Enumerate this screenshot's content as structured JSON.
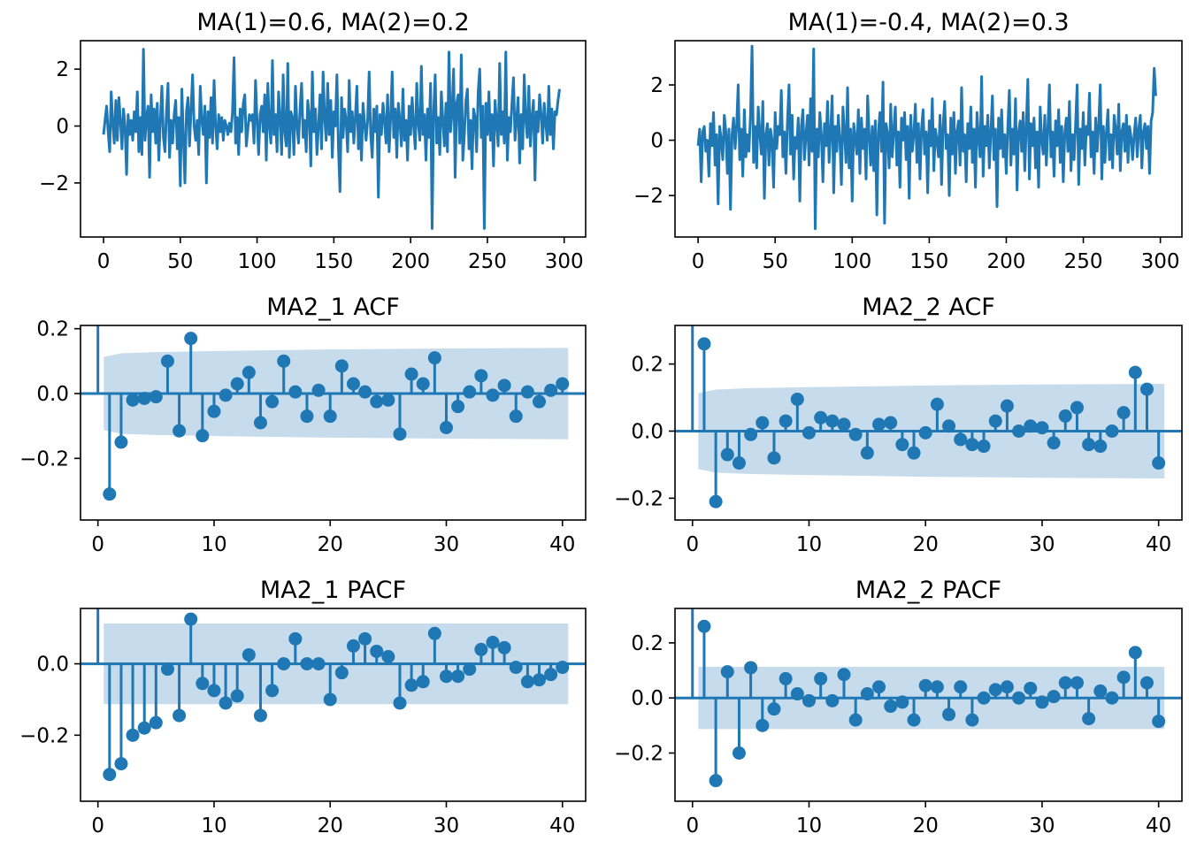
{
  "colors": {
    "line": "#1f77b4",
    "band": "#c6dbec",
    "axis": "#000000"
  },
  "chart_data": [
    {
      "type": "line",
      "title": "MA(1)=0.6, MA(2)=0.2",
      "xlim": [
        -15,
        314
      ],
      "ylim": [
        -3.9,
        3.0
      ],
      "xticks": [
        0,
        50,
        100,
        150,
        200,
        250,
        300
      ],
      "xtick_labels": [
        "0",
        "50",
        "100",
        "150",
        "200",
        "250",
        "300"
      ],
      "yticks": [
        -2,
        0,
        2
      ],
      "ytick_labels": [
        "−2",
        "0",
        "2"
      ],
      "series": [
        {
          "values": [
            -0.3,
            0.2,
            0.7,
            -0.2,
            -0.9,
            1.2,
            0.1,
            -0.6,
            0.9,
            -0.5,
            1.0,
            0.2,
            -0.8,
            0.6,
            0.0,
            -1.7,
            0.4,
            -0.3,
            0.2,
            -0.5,
            0.5,
            -0.2,
            1.2,
            -0.9,
            0.3,
            -1.0,
            2.7,
            -0.5,
            0.3,
            0.7,
            -1.8,
            1.1,
            -0.2,
            0.6,
            -0.6,
            0.8,
            -1.2,
            0.2,
            1.4,
            -0.4,
            -0.9,
            0.5,
            1.5,
            -1.1,
            0.2,
            -0.6,
            0.4,
            0.9,
            -0.8,
            0.3,
            -2.1,
            1.3,
            -0.4,
            -2.0,
            0.5,
            1.0,
            -0.7,
            0.6,
            1.8,
            0.0,
            -0.5,
            0.2,
            -1.0,
            1.4,
            0.2,
            -0.3,
            0.7,
            -2.0,
            0.5,
            -0.4,
            1.0,
            -0.6,
            1.6,
            0.0,
            -0.8,
            0.4,
            -0.2,
            0.3,
            -0.5,
            0.2,
            0.0,
            -0.3,
            0.1,
            -0.2,
            0.5,
            2.4,
            -0.6,
            0.3,
            -1.0,
            0.6,
            -0.2,
            0.8,
            1.1,
            -0.7,
            -0.1,
            0.4,
            0.2,
            0.4,
            -0.6,
            1.6,
            0.2,
            -1.0,
            0.4,
            0.7,
            -0.2,
            1.1,
            -1.2,
            1.5,
            0.0,
            -0.6,
            2.3,
            -0.3,
            0.4,
            -0.9,
            1.2,
            0.3,
            -1.0,
            1.8,
            -0.2,
            -0.7,
            2.2,
            -1.1,
            0.5,
            0.3,
            -1.0,
            1.4,
            0.0,
            -0.6,
            0.6,
            1.5,
            -0.4,
            0.2,
            -0.9,
            0.9,
            0.4,
            -1.4,
            1.9,
            -0.2,
            0.6,
            -1.0,
            0.0,
            1.1,
            -0.8,
            1.9,
            0.3,
            -0.5,
            1.5,
            -0.3,
            0.9,
            -1.1,
            0.5,
            0.0,
            1.8,
            -0.8,
            -2.3,
            1.0,
            -0.4,
            0.6,
            0.2,
            -0.9,
            1.6,
            -0.2,
            0.5,
            -0.6,
            0.3,
            1.4,
            -0.8,
            0.4,
            -1.2,
            0.8,
            0.1,
            -0.5,
            0.2,
            1.9,
            -0.3,
            -1.1,
            0.6,
            -0.2,
            0.7,
            -2.5,
            0.4,
            -0.3,
            0.8,
            0.2,
            -0.6,
            1.1,
            -0.9,
            0.3,
            1.9,
            -0.4,
            0.6,
            -1.1,
            0.8,
            0.2,
            -0.7,
            1.3,
            -0.5,
            0.2,
            -1.2,
            0.7,
            -0.3,
            1.0,
            0.0,
            -0.8,
            1.5,
            0.1,
            -0.5,
            2.1,
            -0.3,
            0.4,
            -1.2,
            0.6,
            -0.4,
            1.5,
            -3.6,
            0.5,
            1.8,
            -0.6,
            0.3,
            -1.0,
            1.2,
            0.2,
            -0.7,
            0.8,
            -0.9,
            2.6,
            -0.2,
            0.5,
            2.0,
            -1.8,
            0.8,
            1.1,
            -0.6,
            2.5,
            -1.2,
            -0.3,
            0.9,
            1.3,
            -0.8,
            0.2,
            -1.5,
            0.6,
            0.3,
            -0.9,
            1.2,
            2.0,
            -0.4,
            0.7,
            -3.6,
            0.8,
            -0.3,
            1.2,
            -0.5,
            0.4,
            -1.4,
            0.9,
            0.1,
            -0.7,
            2.2,
            -0.3,
            0.5,
            -0.6,
            2.6,
            -1.2,
            0.3,
            -0.2,
            0.8,
            1.7,
            -0.5,
            0.2,
            1.0,
            -1.3,
            0.4,
            -0.8,
            1.8,
            0.2,
            -0.4,
            1.4,
            -0.7,
            0.3,
            0.9,
            -1.9,
            0.5,
            -0.2,
            1.1,
            0.4,
            -0.6,
            0.8,
            0.1,
            -0.5,
            1.4,
            -0.3,
            0.6,
            -0.8,
            0.5,
            0.4,
            0.9,
            1.3
          ]
        }
      ]
    },
    {
      "type": "line",
      "title": "MA(1)=-0.4, MA(2)=0.3",
      "xlim": [
        -15,
        314
      ],
      "ylim": [
        -3.5,
        3.6
      ],
      "xticks": [
        0,
        50,
        100,
        150,
        200,
        250,
        300
      ],
      "xtick_labels": [
        "0",
        "50",
        "100",
        "150",
        "200",
        "250",
        "300"
      ],
      "yticks": [
        -2,
        0,
        2
      ],
      "ytick_labels": [
        "−2",
        "0",
        "2"
      ],
      "series": [
        {
          "values": [
            -0.2,
            0.4,
            -1.5,
            0.3,
            0.5,
            -0.4,
            0.0,
            -1.3,
            0.6,
            -0.2,
            1.0,
            -0.9,
            0.2,
            -2.3,
            0.5,
            0.0,
            -0.7,
            0.9,
            0.3,
            -1.2,
            0.4,
            -2.5,
            0.2,
            0.8,
            -0.3,
            0.5,
            2.0,
            -0.7,
            0.4,
            -1.3,
            1.1,
            -0.6,
            0.2,
            -0.4,
            0.9,
            3.4,
            -0.8,
            0.5,
            -1.0,
            1.2,
            0.3,
            -0.5,
            1.4,
            -2.1,
            0.2,
            0.6,
            -0.9,
            0.4,
            0.0,
            -1.7,
            1.0,
            -0.3,
            0.5,
            0.2,
            1.8,
            -0.6,
            0.3,
            -1.2,
            0.7,
            2.0,
            -0.5,
            0.9,
            -1.4,
            0.1,
            -0.3,
            0.8,
            -2.2,
            0.5,
            1.1,
            -0.7,
            0.2,
            0.9,
            -0.9,
            1.5,
            -0.4,
            3.3,
            -3.2,
            0.4,
            -0.6,
            1.0,
            0.2,
            -1.5,
            0.6,
            -0.2,
            1.4,
            -0.8,
            0.3,
            1.6,
            -1.9,
            0.5,
            -0.4,
            0.9,
            0.0,
            -1.6,
            1.2,
            0.3,
            -0.8,
            1.9,
            -1.0,
            0.4,
            -2.2,
            0.6,
            0.1,
            -0.5,
            1.1,
            -1.2,
            0.8,
            -0.3,
            0.4,
            -1.4,
            1.6,
            0.2,
            -0.9,
            0.5,
            -1.1,
            0.7,
            -2.7,
            0.3,
            1.0,
            -0.4,
            2.1,
            -3.0,
            0.6,
            0.2,
            -1.0,
            1.3,
            -0.6,
            0.4,
            1.2,
            -0.9,
            0.3,
            -1.7,
            0.8,
            0.0,
            1.0,
            -0.7,
            0.5,
            -2.1,
            0.9,
            -0.4,
            0.2,
            1.3,
            -0.8,
            0.6,
            -1.4,
            0.4,
            1.1,
            -0.5,
            0.3,
            -1.9,
            0.7,
            -0.2,
            1.5,
            -1.1,
            0.4,
            0.0,
            -0.6,
            0.9,
            -1.6,
            0.5,
            1.4,
            -0.3,
            0.2,
            -2.0,
            0.8,
            -0.5,
            1.0,
            -1.2,
            0.3,
            0.7,
            -0.9,
            1.9,
            -0.4,
            0.2,
            -1.5,
            0.6,
            -0.3,
            1.2,
            -0.8,
            0.4,
            -1.7,
            1.0,
            0.1,
            -0.6,
            2.3,
            -1.3,
            0.5,
            -0.2,
            0.9,
            -1.0,
            0.3,
            1.6,
            -0.7,
            0.4,
            -2.4,
            0.8,
            -0.3,
            1.1,
            -0.6,
            0.2,
            -1.2,
            0.5,
            1.8,
            -0.9,
            0.4,
            -0.5,
            1.5,
            -1.8,
            0.3,
            0.7,
            -0.4,
            1.0,
            -1.1,
            0.5,
            2.2,
            -1.4,
            0.6,
            -0.2,
            0.8,
            -1.0,
            0.3,
            -1.7,
            1.2,
            0.0,
            -0.5,
            0.9,
            -0.9,
            0.4,
            2.0,
            -0.6,
            0.3,
            -1.3,
            0.7,
            -0.2,
            1.1,
            -0.8,
            0.5,
            -1.5,
            0.3,
            0.8,
            -0.4,
            1.4,
            -1.1,
            0.2,
            -0.7,
            0.6,
            2.0,
            -1.6,
            0.4,
            -0.3,
            1.0,
            -0.9,
            0.5,
            0.2,
            1.7,
            -0.6,
            0.3,
            -1.2,
            0.8,
            -0.4,
            0.6,
            2.0,
            -1.4,
            0.5,
            -0.8,
            0.3,
            1.1,
            -0.7,
            0.2,
            -1.0,
            0.9,
            0.4,
            -0.5,
            1.3,
            -1.1,
            0.3,
            0.6,
            -0.4,
            0.9,
            -0.8,
            0.5,
            0.1,
            -0.7,
            0.2,
            0.8,
            -0.6,
            0.4,
            0.9,
            -1.0,
            0.3,
            0.6,
            -0.3,
            0.5,
            -1.2,
            0.7,
            1.0,
            2.6,
            1.6
          ]
        }
      ]
    },
    {
      "type": "stem",
      "title": "MA2_1 ACF",
      "xlim": [
        -1.5,
        42
      ],
      "ylim": [
        -0.39,
        0.21
      ],
      "xticks": [
        0,
        10,
        20,
        30,
        40
      ],
      "xtick_labels": [
        "0",
        "10",
        "20",
        "30",
        "40"
      ],
      "yticks": [
        -0.2,
        0.0,
        0.2
      ],
      "ytick_labels": [
        "−0.2",
        "0.0",
        "0.2"
      ],
      "lags": [
        1,
        2,
        3,
        4,
        5,
        6,
        7,
        8,
        9,
        10,
        11,
        12,
        13,
        14,
        15,
        16,
        17,
        18,
        19,
        20,
        21,
        22,
        23,
        24,
        25,
        26,
        27,
        28,
        29,
        30,
        31,
        32,
        33,
        34,
        35,
        36,
        37,
        38,
        39,
        40
      ],
      "values": [
        -0.31,
        -0.15,
        -0.02,
        -0.015,
        -0.01,
        0.1,
        -0.115,
        0.17,
        -0.13,
        -0.055,
        -0.005,
        0.03,
        0.065,
        -0.09,
        -0.025,
        0.1,
        0.005,
        -0.07,
        0.01,
        -0.07,
        0.085,
        0.03,
        0.005,
        -0.025,
        -0.02,
        -0.125,
        0.06,
        0.03,
        0.11,
        -0.105,
        -0.04,
        0.005,
        0.055,
        -0.005,
        0.025,
        -0.07,
        0.005,
        -0.025,
        0.01,
        0.03
      ],
      "confidence_band": {
        "x": [
          0.5,
          2,
          5,
          10,
          20,
          30,
          40.5
        ],
        "upper": [
          0.113,
          0.124,
          0.128,
          0.131,
          0.136,
          0.139,
          0.141
        ],
        "lower": [
          -0.113,
          -0.124,
          -0.128,
          -0.131,
          -0.136,
          -0.139,
          -0.141
        ]
      }
    },
    {
      "type": "stem",
      "title": "MA2_2 ACF",
      "xlim": [
        -1.5,
        42
      ],
      "ylim": [
        -0.265,
        0.315
      ],
      "xticks": [
        0,
        10,
        20,
        30,
        40
      ],
      "xtick_labels": [
        "0",
        "10",
        "20",
        "30",
        "40"
      ],
      "yticks": [
        -0.2,
        0.0,
        0.2
      ],
      "ytick_labels": [
        "−0.2",
        "0.0",
        "0.2"
      ],
      "lags": [
        1,
        2,
        3,
        4,
        5,
        6,
        7,
        8,
        9,
        10,
        11,
        12,
        13,
        14,
        15,
        16,
        17,
        18,
        19,
        20,
        21,
        22,
        23,
        24,
        25,
        26,
        27,
        28,
        29,
        30,
        31,
        32,
        33,
        34,
        35,
        36,
        37,
        38,
        39,
        40
      ],
      "values": [
        0.26,
        -0.21,
        -0.07,
        -0.095,
        -0.01,
        0.025,
        -0.08,
        0.03,
        0.095,
        -0.005,
        0.04,
        0.03,
        0.02,
        -0.01,
        -0.065,
        0.02,
        0.025,
        -0.04,
        -0.065,
        -0.005,
        0.08,
        0.015,
        -0.025,
        -0.04,
        -0.045,
        0.03,
        0.075,
        0.0,
        0.015,
        0.01,
        -0.035,
        0.045,
        0.07,
        -0.04,
        -0.045,
        0.0,
        0.055,
        0.175,
        0.125,
        -0.095
      ],
      "confidence_band": {
        "x": [
          0.5,
          2,
          5,
          10,
          20,
          30,
          40.5
        ],
        "upper": [
          0.113,
          0.124,
          0.128,
          0.131,
          0.136,
          0.139,
          0.141
        ],
        "lower": [
          -0.113,
          -0.124,
          -0.128,
          -0.131,
          -0.136,
          -0.139,
          -0.141
        ]
      }
    },
    {
      "type": "stem",
      "title": "MA2_1 PACF",
      "xlim": [
        -1.5,
        42
      ],
      "ylim": [
        -0.385,
        0.155
      ],
      "xticks": [
        0,
        10,
        20,
        30,
        40
      ],
      "xtick_labels": [
        "0",
        "10",
        "20",
        "30",
        "40"
      ],
      "yticks": [
        -0.2,
        0.0
      ],
      "ytick_labels": [
        "−0.2",
        "0.0"
      ],
      "lags": [
        1,
        2,
        3,
        4,
        5,
        6,
        7,
        8,
        9,
        10,
        11,
        12,
        13,
        14,
        15,
        16,
        17,
        18,
        19,
        20,
        21,
        22,
        23,
        24,
        25,
        26,
        27,
        28,
        29,
        30,
        31,
        32,
        33,
        34,
        35,
        36,
        37,
        38,
        39,
        40
      ],
      "values": [
        -0.31,
        -0.28,
        -0.2,
        -0.18,
        -0.165,
        -0.015,
        -0.145,
        0.125,
        -0.055,
        -0.075,
        -0.11,
        -0.09,
        0.025,
        -0.145,
        -0.075,
        0.0,
        0.07,
        0.0,
        0.0,
        -0.1,
        -0.025,
        0.05,
        0.07,
        0.035,
        0.02,
        -0.11,
        -0.06,
        -0.05,
        0.085,
        -0.035,
        -0.035,
        -0.015,
        0.04,
        0.06,
        0.045,
        -0.01,
        -0.05,
        -0.045,
        -0.03,
        -0.01
      ],
      "confidence_band": {
        "x": [
          0.5,
          40.5
        ],
        "upper": [
          0.113,
          0.113
        ],
        "lower": [
          -0.113,
          -0.113
        ]
      }
    },
    {
      "type": "stem",
      "title": "MA2_2 PACF",
      "xlim": [
        -1.5,
        42
      ],
      "ylim": [
        -0.375,
        0.325
      ],
      "xticks": [
        0,
        10,
        20,
        30,
        40
      ],
      "xtick_labels": [
        "0",
        "10",
        "20",
        "30",
        "40"
      ],
      "yticks": [
        -0.2,
        0.0,
        0.2
      ],
      "ytick_labels": [
        "−0.2",
        "0.0",
        "0.2"
      ],
      "lags": [
        1,
        2,
        3,
        4,
        5,
        6,
        7,
        8,
        9,
        10,
        11,
        12,
        13,
        14,
        15,
        16,
        17,
        18,
        19,
        20,
        21,
        22,
        23,
        24,
        25,
        26,
        27,
        28,
        29,
        30,
        31,
        32,
        33,
        34,
        35,
        36,
        37,
        38,
        39,
        40
      ],
      "values": [
        0.26,
        -0.3,
        0.095,
        -0.2,
        0.11,
        -0.1,
        -0.04,
        0.07,
        0.015,
        -0.01,
        0.07,
        -0.01,
        0.085,
        -0.08,
        0.015,
        0.04,
        -0.03,
        -0.015,
        -0.08,
        0.045,
        0.04,
        -0.06,
        0.04,
        -0.08,
        0.0,
        0.03,
        0.04,
        0.0,
        0.035,
        -0.015,
        0.005,
        0.055,
        0.055,
        -0.075,
        0.025,
        0.0,
        0.075,
        0.165,
        0.055,
        -0.085
      ],
      "confidence_band": {
        "x": [
          0.5,
          40.5
        ],
        "upper": [
          0.113,
          0.113
        ],
        "lower": [
          -0.113,
          -0.113
        ]
      }
    }
  ]
}
